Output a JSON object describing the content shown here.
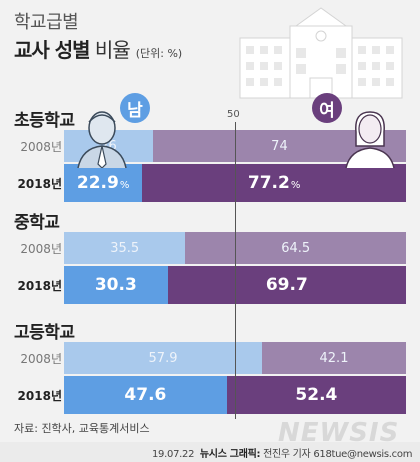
{
  "title": {
    "small": "학교급별",
    "main_bold": "교사 성별",
    "main_light": " 비율",
    "unit": "(단위: %)"
  },
  "legend": {
    "male": "남",
    "female": "여"
  },
  "reference": {
    "value": 50,
    "label": "50"
  },
  "chart_data": {
    "type": "bar",
    "orientation": "horizontal",
    "stacked": true,
    "xlim": [
      0,
      100
    ],
    "groups": [
      {
        "label": "초등학교",
        "rows": [
          {
            "year": "2008년",
            "male": 26,
            "female": 74,
            "male_text": "26",
            "female_text": "74",
            "pct": false
          },
          {
            "year": "2018년",
            "male": 22.9,
            "female": 77.2,
            "male_text": "22.9",
            "female_text": "77.2",
            "pct": true
          }
        ]
      },
      {
        "label": "중학교",
        "rows": [
          {
            "year": "2008년",
            "male": 35.5,
            "female": 64.5,
            "male_text": "35.5",
            "female_text": "64.5",
            "pct": false
          },
          {
            "year": "2018년",
            "male": 30.3,
            "female": 69.7,
            "male_text": "30.3",
            "female_text": "69.7",
            "pct": false
          }
        ]
      },
      {
        "label": "고등학교",
        "rows": [
          {
            "year": "2008년",
            "male": 57.9,
            "female": 42.1,
            "male_text": "57.9",
            "female_text": "42.1",
            "pct": false
          },
          {
            "year": "2018년",
            "male": 47.6,
            "female": 52.4,
            "male_text": "47.6",
            "female_text": "52.4",
            "pct": false
          }
        ]
      }
    ],
    "percent_sign": "%",
    "colors": {
      "male_2008": "#a9c9ec",
      "female_2008": "#9c85ac",
      "male_2018": "#5e9ee3",
      "female_2018": "#6a3f7d"
    }
  },
  "source": "자료: 진학사, 교육통계서비스",
  "credit": {
    "date": "19.07.22",
    "org": "뉴시스 그래픽:",
    "author": "전진우 기자 618tue@newsis.com"
  },
  "watermark": "NEWSIS"
}
